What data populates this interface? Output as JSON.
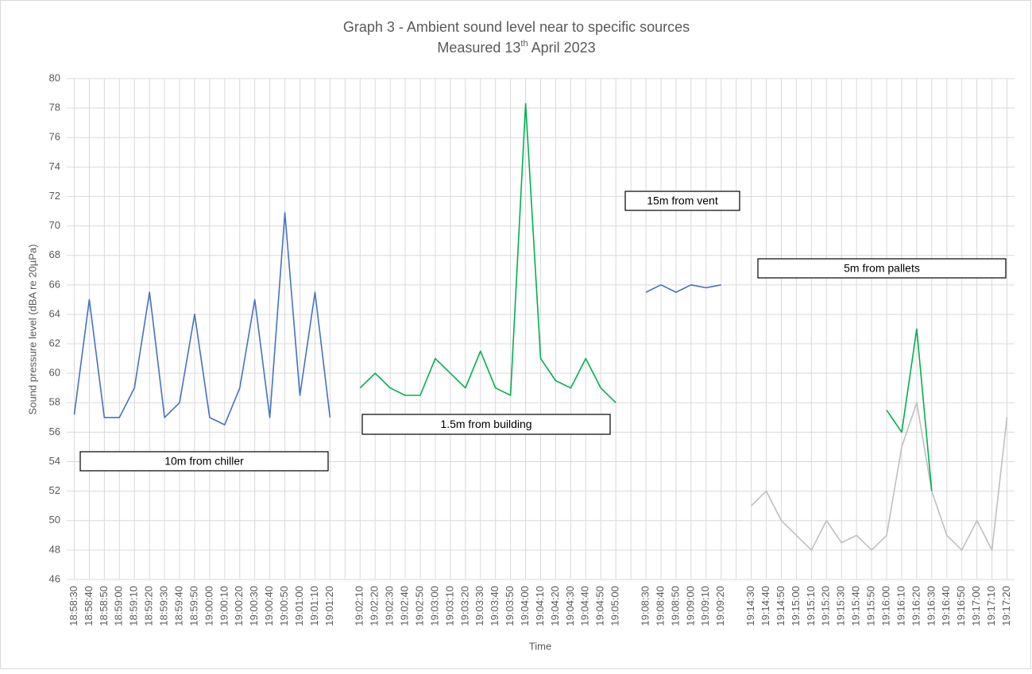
{
  "chart_data": {
    "type": "line",
    "title": "Graph 3 - Ambient sound level near to specific sources",
    "subtitle": {
      "before": "Measured 13",
      "superscript": "th",
      "after": "April 2023"
    },
    "y_label": "Sound pressure level (dBA re 20µPa)",
    "x_label": "Time",
    "categories": [
      "18:58:30",
      "18:58:40",
      "18:58:50",
      "18:59:00",
      "18:59:10",
      "18:59:20",
      "18:59:30",
      "18:59:40",
      "18:59:50",
      "19:00:00",
      "19:00:10",
      "19:00:20",
      "19:00:30",
      "19:00:40",
      "19:00:50",
      "19:01:00",
      "19:01:10",
      "19:01:20",
      null,
      "19:02:10",
      "19:02:20",
      "19:02:30",
      "19:02:40",
      "19:02:50",
      "19:03:00",
      "19:03:10",
      "19:03:20",
      "19:03:30",
      "19:03:40",
      "19:03:50",
      "19:04:00",
      "19:04:10",
      "19:04:20",
      "19:04:30",
      "19:04:40",
      "19:04:50",
      "19:05:00",
      null,
      "19:08:30",
      "19:08:40",
      "19:08:50",
      "19:09:00",
      "19:09:10",
      "19:09:20",
      null,
      "19:14:30",
      "19:14:40",
      "19:14:50",
      "19:15:00",
      "19:15:10",
      "19:15:20",
      "19:15:30",
      "19:15:40",
      "19:15:50",
      "19:16:00",
      "19:16:10",
      "19:16:20",
      "19:16:30",
      "19:16:40",
      "19:16:50",
      "19:17:00",
      "19:17:10",
      "19:17:20"
    ],
    "series": [
      {
        "color": "#4472c4",
        "values": [
          57.2,
          65,
          57,
          57,
          59,
          65.5,
          57,
          58,
          64,
          57,
          56.5,
          59,
          65,
          57,
          70.9,
          58.5,
          65.5,
          57,
          null,
          null,
          null,
          null,
          null,
          null,
          null,
          null,
          null,
          null,
          null,
          null,
          null,
          null,
          null,
          null,
          null,
          null,
          null,
          null,
          65.5,
          66,
          65.5,
          66,
          65.8,
          66,
          null,
          null,
          null,
          null,
          null,
          null,
          null,
          null,
          null,
          null,
          null,
          null,
          null,
          null,
          null,
          null,
          null,
          null,
          null
        ]
      },
      {
        "color": "#bfbfbf",
        "values": [
          null,
          null,
          null,
          null,
          null,
          null,
          null,
          null,
          null,
          null,
          null,
          null,
          null,
          null,
          null,
          null,
          null,
          null,
          null,
          null,
          null,
          null,
          null,
          null,
          null,
          null,
          null,
          null,
          null,
          null,
          null,
          null,
          null,
          null,
          null,
          null,
          null,
          null,
          null,
          null,
          null,
          null,
          null,
          null,
          null,
          51,
          52,
          50,
          49,
          48,
          50,
          48.5,
          49,
          48,
          49,
          55,
          58,
          52,
          49,
          48,
          50,
          48,
          57
        ]
      },
      {
        "color": "#00b050",
        "values": [
          null,
          null,
          null,
          null,
          null,
          null,
          null,
          null,
          null,
          null,
          null,
          null,
          null,
          null,
          null,
          null,
          null,
          null,
          null,
          59,
          60,
          59,
          58.5,
          58.5,
          61,
          60,
          59,
          61.5,
          59,
          58.5,
          78.3,
          61,
          59.5,
          59,
          61,
          59,
          58,
          null,
          null,
          null,
          null,
          null,
          null,
          null,
          null,
          null,
          null,
          null,
          null,
          null,
          null,
          null,
          null,
          null,
          57.5,
          56,
          63,
          52,
          null,
          null,
          null,
          null,
          null
        ]
      }
    ],
    "annotations": [
      "10m from chiller",
      "1.5m from building",
      "15m from vent",
      "5m from pallets"
    ],
    "ylim": [
      46,
      80
    ],
    "yticks": [
      46,
      48,
      50,
      52,
      54,
      56,
      58,
      60,
      62,
      64,
      66,
      68,
      70,
      72,
      74,
      76,
      78,
      80
    ],
    "grid": true
  }
}
